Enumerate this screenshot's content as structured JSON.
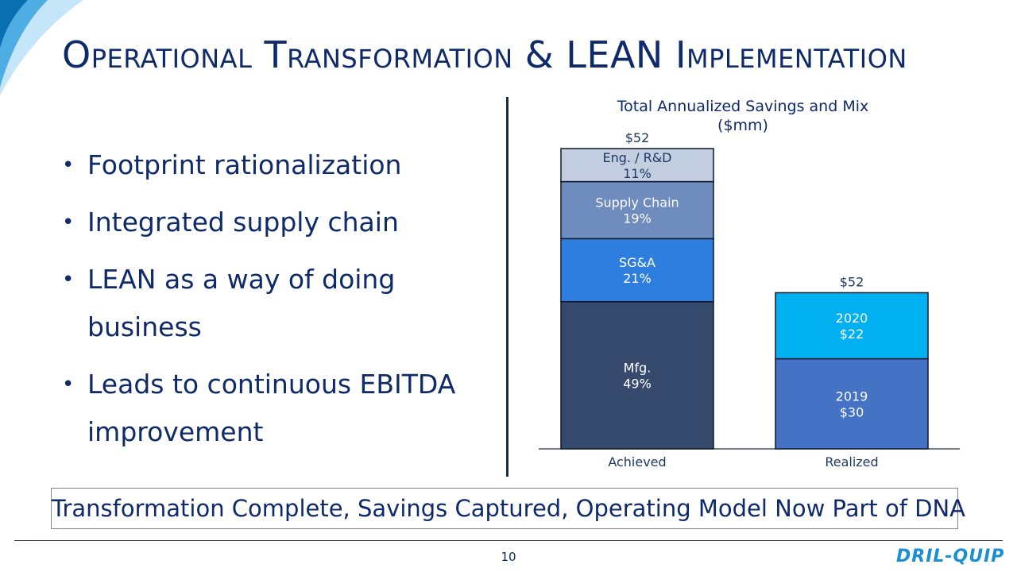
{
  "slide": {
    "title": "Operational Transformation & LEAN Implementation",
    "bullets": [
      "Footprint rationalization",
      "Integrated supply chain",
      "LEAN as a way of doing business",
      "Leads to continuous EBITDA improvement"
    ],
    "callout": "Transformation Complete, Savings Captured, Operating Model Now Part of DNA",
    "page_number": "10",
    "logo_text": "DRIL-QUIP"
  },
  "chart_data": {
    "type": "bar",
    "stacked": true,
    "title": "Total Annualized Savings and Mix ($mm)",
    "categories": [
      "Achieved",
      "Realized"
    ],
    "totals": [
      "$52",
      "$52"
    ],
    "stacks": [
      {
        "category": "Achieved",
        "segments": [
          {
            "name": "Mfg.",
            "label": "49%",
            "value": 49,
            "color": "#354a6c"
          },
          {
            "name": "SG&A",
            "label": "21%",
            "value": 21,
            "color": "#2e7ee0"
          },
          {
            "name": "Supply Chain",
            "label": "19%",
            "value": 19,
            "color": "#6e8cbd"
          },
          {
            "name": "Eng. / R&D",
            "label": "11%",
            "value": 11,
            "color": "#c3cde0"
          }
        ]
      },
      {
        "category": "Realized",
        "segments": [
          {
            "name": "2019",
            "label": "$30",
            "value": 30,
            "color": "#4472c4"
          },
          {
            "name": "2020",
            "label": "$22",
            "value": 22,
            "color": "#00b0f0"
          }
        ]
      }
    ]
  }
}
